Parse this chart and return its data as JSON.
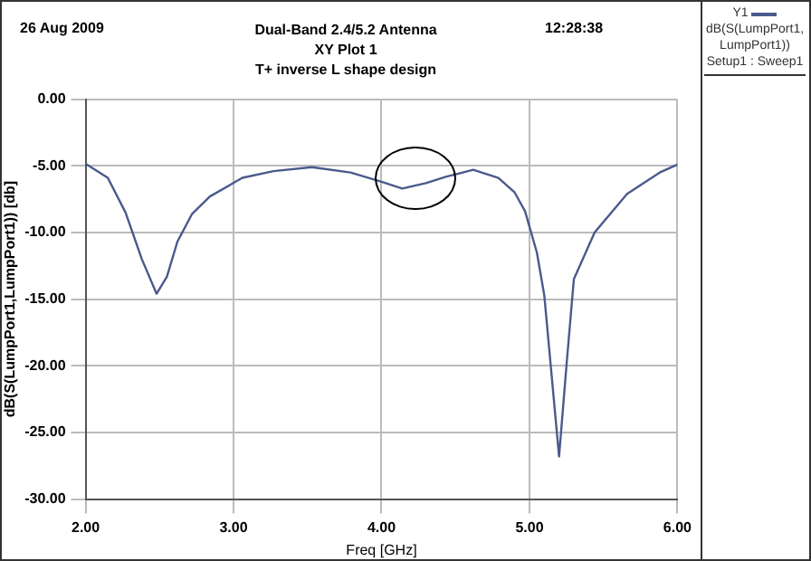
{
  "chart_data": {
    "type": "line",
    "title": "Dual-Band 2.4/5.2 Antenna",
    "subtitle": "XY Plot 1",
    "xlabel": "Freq [GHz]",
    "ylabel": "dB(S(LumpPort1,LumpPort1)) [db]",
    "legend_title": "Y1",
    "annotations": [
      "26 Aug 2009",
      "12:28:38",
      "T+ inverse L shape design",
      "Setup1 : Sweep1"
    ],
    "series": [
      {
        "name": "dB(S(LumpPort1,LumpPort1))",
        "color": "#4a5a8c",
        "x": [
          2.0,
          2.15,
          2.27,
          2.38,
          2.48,
          2.55,
          2.62,
          2.72,
          2.84,
          3.06,
          3.27,
          3.53,
          3.79,
          4.0,
          4.14,
          4.3,
          4.44,
          4.62,
          4.79,
          4.9,
          4.97,
          5.05,
          5.1,
          5.2,
          5.25,
          5.3,
          5.44,
          5.66,
          5.88,
          6.0
        ],
        "values": [
          -4.85,
          -5.9,
          -8.5,
          -12.0,
          -14.6,
          -13.3,
          -10.7,
          -8.6,
          -7.3,
          -5.9,
          -5.4,
          -5.1,
          -5.5,
          -6.2,
          -6.7,
          -6.3,
          -5.8,
          -5.3,
          -5.9,
          -7.0,
          -8.4,
          -11.5,
          -14.7,
          -26.8,
          -20.0,
          -13.5,
          -10.0,
          -7.1,
          -5.5,
          -4.9
        ]
      }
    ],
    "xlim": [
      2,
      6
    ],
    "xticks": [
      {
        "value": 2,
        "label": "2.00"
      },
      {
        "value": 3,
        "label": "3.00"
      },
      {
        "value": 4,
        "label": "4.00"
      },
      {
        "value": 5,
        "label": "5.00"
      },
      {
        "value": 6,
        "label": "6.00"
      }
    ],
    "ylim": [
      -30,
      0
    ],
    "yticks": [
      {
        "value": 0,
        "label": "0.00"
      },
      {
        "value": -5,
        "label": "-5.00"
      },
      {
        "value": -10,
        "label": "-10.00"
      },
      {
        "value": -15,
        "label": "-15.00"
      },
      {
        "value": -20,
        "label": "-20.00"
      },
      {
        "value": -25,
        "label": "-25.00"
      },
      {
        "value": -30,
        "label": "-30.00"
      }
    ],
    "grid": true,
    "legend": "top right",
    "marker": "none",
    "line_style": "solid"
  }
}
